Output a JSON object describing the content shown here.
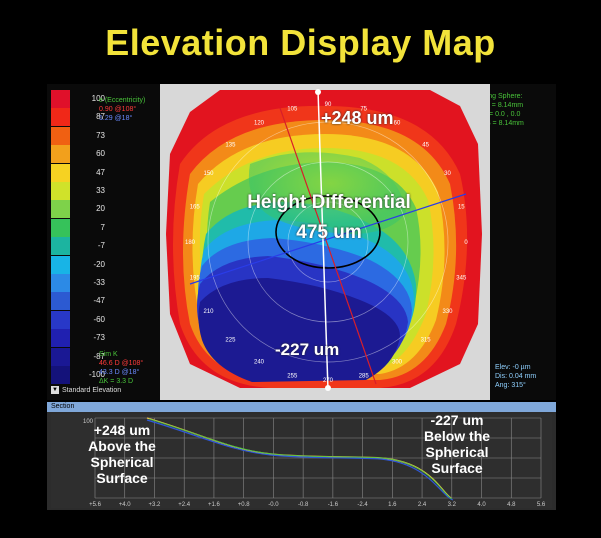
{
  "title": "Elevation Display Map",
  "scale": {
    "values": [
      "100",
      "87",
      "73",
      "60",
      "47",
      "33",
      "20",
      "7",
      "-7",
      "-20",
      "-33",
      "-47",
      "-60",
      "-73",
      "-87",
      "-100"
    ],
    "colors": [
      "#e0102a",
      "#f02818",
      "#f06012",
      "#f2a01c",
      "#f6d222",
      "#d0e22a",
      "#7ed24a",
      "#36c25a",
      "#1cb4a0",
      "#18b4e6",
      "#2c8ae6",
      "#2c5ad2",
      "#2838c8",
      "#2020b0",
      "#1a1894",
      "#14127a"
    ]
  },
  "stats": {
    "e_label": "e (Eccentricity)",
    "e1": "0.90 @108°",
    "e2": "1.29 @18°",
    "simk_label": "Sim K",
    "simk1": "46.6 D @108°",
    "simk2": "43.3 D @18°",
    "delta_k": "ΔK = 3.3 D"
  },
  "fitting": {
    "line1": "Fitting Sphere:",
    "line2": "Rad = 8.14mm",
    "line3": "Dis = 0.0 , 0.0",
    "line4": "BFS = 8.14mm"
  },
  "elev_info": {
    "line1": "Elev: -0 µm",
    "line2": "Dis: 0.04 mm",
    "line3": "Ang: 315°"
  },
  "mode": {
    "label": "Standard Elevation",
    "icon": "dropdown-arrow-icon"
  },
  "map": {
    "top_text": "+248 um",
    "center_line1": "Height Differential",
    "center_line2": "475 um",
    "bottom_text": "-227 um",
    "angles": [
      "105",
      "120",
      "135",
      "150",
      "165",
      "180",
      "195",
      "210",
      "225",
      "240",
      "255",
      "270",
      "285",
      "300",
      "315",
      "330",
      "345",
      "0",
      "15",
      "30",
      "45",
      "60",
      "75",
      "90"
    ]
  },
  "section": {
    "title": "Section",
    "left_annotation": [
      "+248 um",
      "Above the",
      "Spherical",
      "Surface"
    ],
    "right_annotation": [
      "-227 um",
      "Below the",
      "Spherical",
      "Surface"
    ],
    "y_tick": "100",
    "x_ticks": [
      "+5.6",
      "+4.0",
      "+3.2",
      "+2.4",
      "+1.6",
      "+0.8",
      "-0.0",
      "-0.8",
      "-1.6",
      "-2.4",
      "1.6",
      "2.4",
      "3.2",
      "4.0",
      "4.8",
      "5.6"
    ]
  }
}
